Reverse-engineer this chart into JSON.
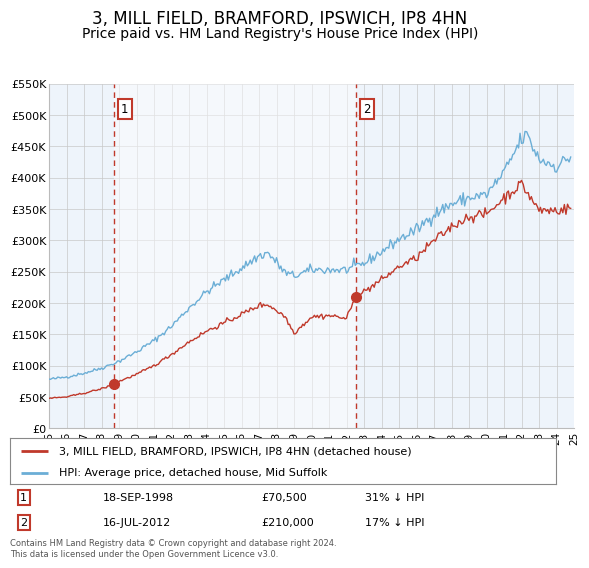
{
  "title": "3, MILL FIELD, BRAMFORD, IPSWICH, IP8 4HN",
  "subtitle": "Price paid vs. HM Land Registry's House Price Index (HPI)",
  "title_fontsize": 12,
  "subtitle_fontsize": 10,
  "hpi_color": "#6baed6",
  "price_color": "#c0392b",
  "sale1_date_label": "18-SEP-1998",
  "sale1_price": 70500,
  "sale1_hpi_pct": "31% ↓ HPI",
  "sale2_date_label": "16-JUL-2012",
  "sale2_price": 210000,
  "sale2_hpi_pct": "17% ↓ HPI",
  "sale1_x": 1998.72,
  "sale2_x": 2012.54,
  "ymin": 0,
  "ymax": 550000,
  "xmin": 1995,
  "xmax": 2025,
  "legend_label_price": "3, MILL FIELD, BRAMFORD, IPSWICH, IP8 4HN (detached house)",
  "legend_label_hpi": "HPI: Average price, detached house, Mid Suffolk",
  "footnote": "Contains HM Land Registry data © Crown copyright and database right 2024.\nThis data is licensed under the Open Government Licence v3.0.",
  "background_color": "#ffffff",
  "chart_bg_color": "#eef4fb",
  "grid_color": "#c8c8c8"
}
